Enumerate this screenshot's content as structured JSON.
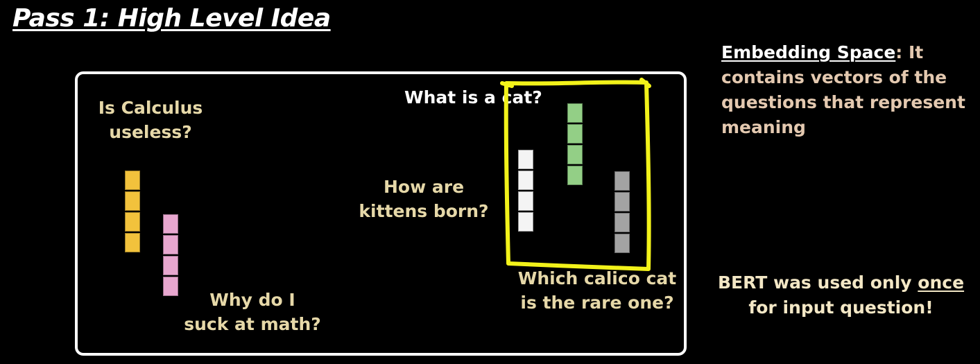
{
  "title": "Pass 1: High Level Idea",
  "questions": {
    "calculus_line1": "Is Calculus",
    "calculus_line2": "useless?",
    "math_line1": "Why do I",
    "math_line2": "suck at math?",
    "cat": "What is a cat?",
    "kittens_line1": "How are",
    "kittens_line2": "kittens born?",
    "calico_line1": "Which calico cat",
    "calico_line2": "is the rare one?"
  },
  "vectors": [
    {
      "id": "calculus",
      "cells": 4,
      "color": "#f2c23c"
    },
    {
      "id": "math",
      "cells": 4,
      "color": "#e8a7cf"
    },
    {
      "id": "kittens",
      "cells": 4,
      "color": "#f4f4f4"
    },
    {
      "id": "cat",
      "cells": 4,
      "color": "#93cf86"
    },
    {
      "id": "calico",
      "cells": 4,
      "color": "#a3a3a3"
    }
  ],
  "highlight_color": "#f2f21a",
  "side_text": {
    "term": "Embedding Space",
    "description": ": It contains vectors of the questions that represent meaning"
  },
  "bert_note": {
    "before": "BERT was used only ",
    "emphasis": "once",
    "after": " for input question!"
  }
}
